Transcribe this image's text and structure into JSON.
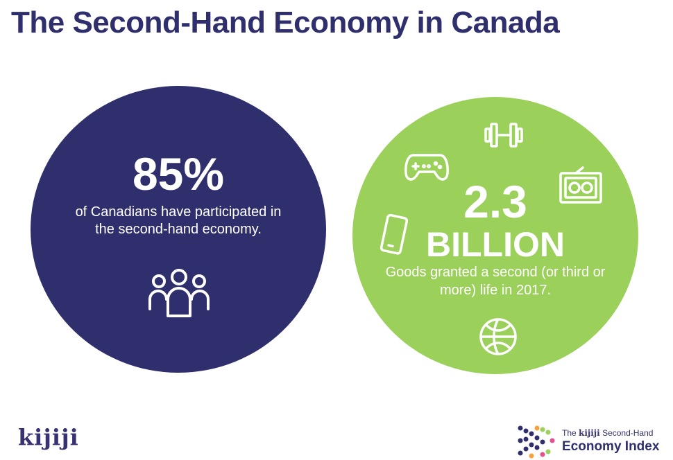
{
  "header": {
    "title": "The Second-Hand Economy in Canada"
  },
  "left_stat": {
    "value": "85%",
    "description": "of Canadians have participated in the second-hand economy.",
    "icon": "people-icon",
    "color": "#2f2f6e"
  },
  "right_stat": {
    "value": "2.3",
    "unit": "BILLION",
    "description": "Goods granted a second (or third or more) life in 2017.",
    "icons": [
      "dumbbell-icon",
      "gamepad-icon",
      "radio-icon",
      "phone-icon",
      "basketball-icon"
    ],
    "color": "#9bd05a"
  },
  "footer": {
    "brand_logo": "kijiji",
    "index_prefix": "The",
    "index_brand": "kijiji",
    "index_suffix": "Second-Hand",
    "index_title": "Economy Index"
  }
}
